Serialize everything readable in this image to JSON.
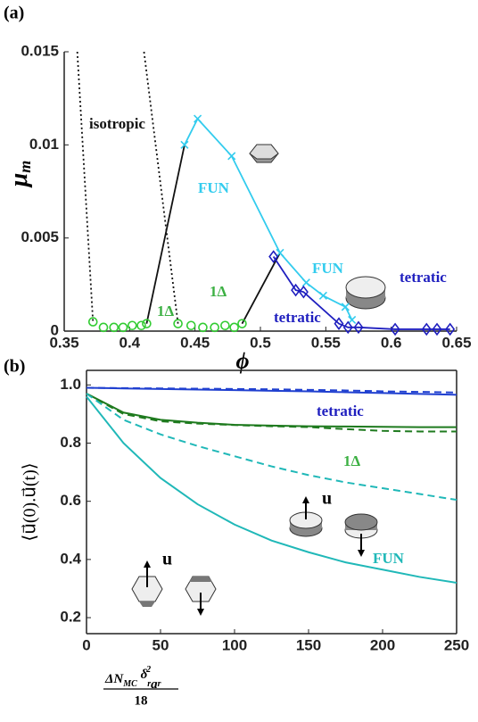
{
  "chart_data": [
    {
      "type": "line",
      "panel": "(a)",
      "xlabel": "ϕ",
      "ylabel_parts": [
        "μ",
        "m"
      ],
      "xlim": [
        0.35,
        0.65
      ],
      "ylim": [
        0,
        0.015
      ],
      "xticks": [
        0.35,
        0.4,
        0.45,
        0.5,
        0.55,
        0.6,
        0.65
      ],
      "yticks": [
        0,
        0.005,
        0.01,
        0.015
      ],
      "box": false,
      "series": [
        {
          "color": "#111111",
          "marker": "none",
          "linestyle": "dotted",
          "x": [
            0.36,
            0.372
          ],
          "values": [
            0.015,
            0.0005
          ]
        },
        {
          "color": "#111111",
          "marker": "none",
          "linestyle": "dotted",
          "x": [
            0.411,
            0.437
          ],
          "values": [
            0.015,
            0.0004
          ]
        },
        {
          "color": "#111111",
          "marker": "none",
          "linestyle": "solid",
          "x": [
            0.413,
            0.442
          ],
          "values": [
            0.0004,
            0.01
          ]
        },
        {
          "color": "#111111",
          "marker": "none",
          "linestyle": "solid",
          "x": [
            0.486,
            0.515
          ],
          "values": [
            0.0004,
            0.0042
          ]
        },
        {
          "color": "#33cc33",
          "marker": "circle",
          "linestyle": "none",
          "x": [
            0.372,
            0.38,
            0.388,
            0.395,
            0.402,
            0.409,
            0.413,
            0.437,
            0.447,
            0.456,
            0.465,
            0.473,
            0.48,
            0.486
          ],
          "values": [
            0.0005,
            0.0002,
            0.0002,
            0.0002,
            0.0003,
            0.0003,
            0.0004,
            0.0004,
            0.0003,
            0.0002,
            0.0002,
            0.0003,
            0.0002,
            0.0004
          ]
        },
        {
          "color": "#33ccee",
          "marker": "x",
          "linestyle": "solid",
          "x": [
            0.442,
            0.452,
            0.478,
            0.515,
            0.535,
            0.548,
            0.565,
            0.57
          ],
          "values": [
            0.01,
            0.0114,
            0.0094,
            0.0042,
            0.0026,
            0.0019,
            0.0013,
            0.0006
          ]
        },
        {
          "color": "#1f1fbf",
          "marker": "diamond",
          "linestyle": "solid",
          "x": [
            0.51,
            0.527,
            0.533,
            0.56,
            0.567,
            0.575,
            0.603,
            0.627,
            0.635,
            0.645
          ],
          "values": [
            0.004,
            0.0022,
            0.0021,
            0.0004,
            0.0002,
            0.0002,
            0.0001,
            0.0001,
            0.0001,
            0.0001
          ]
        }
      ],
      "annotations": [
        {
          "text": "isotropic",
          "color": "#111111"
        },
        {
          "text": "1Δ",
          "color": "#3cb043"
        },
        {
          "text": "1Δ",
          "color": "#3cb043"
        },
        {
          "text": "FUN",
          "color": "#33ccee"
        },
        {
          "text": "FUN",
          "color": "#33ccee"
        },
        {
          "text": "tetratic",
          "color": "#1f1fbf"
        },
        {
          "text": "tetratic",
          "color": "#1f1fbf"
        }
      ]
    },
    {
      "type": "line",
      "panel": "(b)",
      "xlabel_parts": [
        "ΔN",
        "MC",
        " δ",
        "r",
        "2",
        "a",
        "r"
      ],
      "xlabel_denominator": "18",
      "ylabel": "⟨u⃗(0).u⃗(t)⟩",
      "xlim": [
        0,
        250
      ],
      "ylim": [
        0.145,
        1.05
      ],
      "xticks": [
        0,
        50,
        100,
        150,
        200,
        250
      ],
      "yticks": [
        0.2,
        0.4,
        0.6,
        0.8,
        {
          "value": 1,
          "label": "1.0"
        }
      ],
      "box": true,
      "x": [
        0,
        25,
        50,
        75,
        100,
        125,
        150,
        175,
        200,
        225,
        250
      ],
      "series": [
        {
          "color": "#2040d0",
          "linestyle": "solid",
          "values": [
            0.99,
            0.988,
            0.986,
            0.984,
            0.982,
            0.98,
            0.978,
            0.975,
            0.972,
            0.969,
            0.966
          ]
        },
        {
          "color": "#2040d0",
          "linestyle": "dashed",
          "values": [
            0.99,
            0.989,
            0.988,
            0.987,
            0.986,
            0.985,
            0.983,
            0.981,
            0.978,
            0.976,
            0.974
          ]
        },
        {
          "color": "#1e7a1e",
          "linestyle": "solid",
          "values": [
            0.97,
            0.905,
            0.88,
            0.87,
            0.863,
            0.86,
            0.858,
            0.857,
            0.856,
            0.855,
            0.855
          ]
        },
        {
          "color": "#1e7a1e",
          "linestyle": "dashed",
          "values": [
            0.97,
            0.9,
            0.875,
            0.867,
            0.862,
            0.858,
            0.855,
            0.848,
            0.842,
            0.84,
            0.84
          ]
        },
        {
          "color": "#20b8b8",
          "linestyle": "dashed",
          "values": [
            0.97,
            0.88,
            0.83,
            0.79,
            0.755,
            0.72,
            0.69,
            0.665,
            0.645,
            0.625,
            0.605
          ]
        },
        {
          "color": "#20b8b8",
          "linestyle": "solid",
          "values": [
            0.96,
            0.8,
            0.68,
            0.59,
            0.52,
            0.465,
            0.425,
            0.39,
            0.365,
            0.34,
            0.32
          ]
        }
      ],
      "annotations": [
        {
          "text": "tetratic",
          "color": "#1f1fbf"
        },
        {
          "text": "1Δ",
          "color": "#3cb043"
        },
        {
          "text": "FUN",
          "color": "#20b8b8"
        }
      ]
    }
  ]
}
